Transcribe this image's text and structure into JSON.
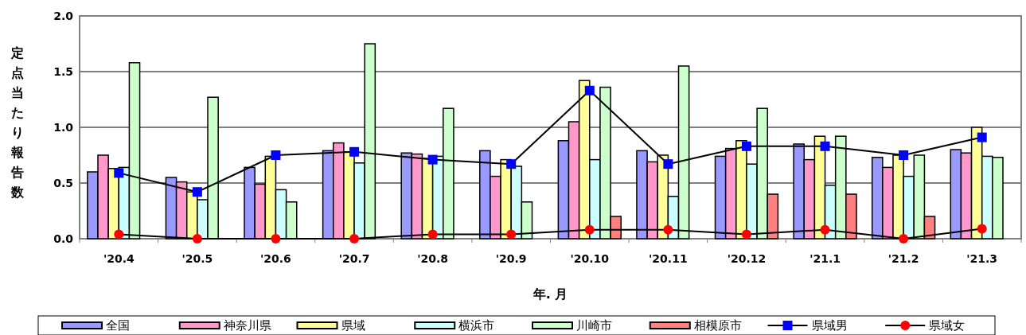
{
  "chart_data": {
    "type": "bar",
    "xlabel": "年. 月",
    "ylabel": "定点当たり報告数",
    "categories": [
      "'20.4",
      "'20.5",
      "'20.6",
      "'20.7",
      "'20.8",
      "'20.9",
      "'20.10",
      "'20.11",
      "'20.12",
      "'21.1",
      "'21.2",
      "'21.3"
    ],
    "ylim": [
      0,
      2
    ],
    "yticks": [
      {
        "value": 0,
        "label": "0.0"
      },
      {
        "value": 0.5,
        "label": "0.5"
      },
      {
        "value": 1,
        "label": "1.0"
      },
      {
        "value": 1.5,
        "label": "1.5"
      },
      {
        "value": 2,
        "label": "2.0"
      }
    ],
    "grid": "y",
    "legend": "bottom",
    "series": [
      {
        "name": "全国",
        "color": "#9999ff",
        "values": [
          0.6,
          0.55,
          0.64,
          0.79,
          0.77,
          0.79,
          0.88,
          0.79,
          0.74,
          0.85,
          0.73,
          0.8
        ]
      },
      {
        "name": "神奈川県",
        "color": "#ff99cc",
        "values": [
          0.75,
          0.51,
          0.49,
          0.86,
          0.76,
          0.56,
          1.05,
          0.69,
          0.81,
          0.71,
          0.64,
          0.77
        ]
      },
      {
        "name": "県域",
        "color": "#ffff99",
        "values": [
          0.63,
          0.42,
          0.74,
          0.78,
          0.72,
          0.71,
          1.42,
          0.75,
          0.88,
          0.92,
          0.75,
          1.0
        ]
      },
      {
        "name": "横浜市",
        "color": "#ccffff",
        "values": [
          0.64,
          0.35,
          0.44,
          0.68,
          0.74,
          0.65,
          0.71,
          0.38,
          0.67,
          0.48,
          0.56,
          0.74
        ]
      },
      {
        "name": "川崎市",
        "color": "#ccffcc",
        "values": [
          1.58,
          1.27,
          0.33,
          1.75,
          1.17,
          0.33,
          1.36,
          1.55,
          1.17,
          0.92,
          0.75,
          0.73
        ]
      },
      {
        "name": "相模原市",
        "color": "#ff8080",
        "values": [
          0,
          0,
          0,
          0,
          0,
          0,
          0.2,
          0,
          0.4,
          0.4,
          0.2,
          0
        ]
      },
      {
        "name": "県域男",
        "type": "line",
        "color": "#0000ff",
        "marker": "square",
        "values": [
          0.59,
          0.42,
          0.75,
          0.78,
          0.71,
          0.67,
          1.33,
          0.67,
          0.83,
          0.83,
          0.75,
          0.91
        ]
      },
      {
        "name": "県域女",
        "type": "line",
        "color": "#ff0000",
        "marker": "circle",
        "values": [
          0.04,
          0,
          0,
          0,
          0.04,
          0.04,
          0.08,
          0.08,
          0.04,
          0.08,
          0,
          0.09
        ]
      }
    ]
  }
}
